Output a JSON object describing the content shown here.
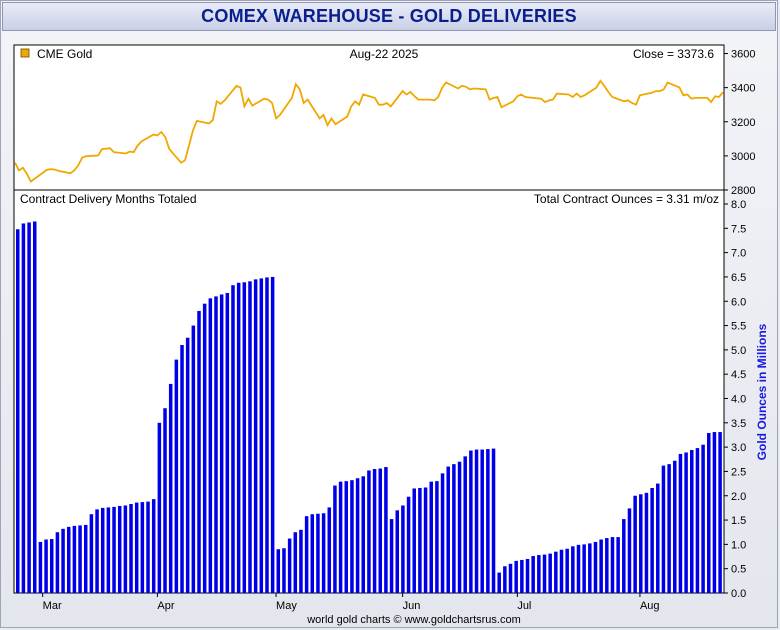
{
  "title": "COMEX WAREHOUSE - GOLD DELIVERIES",
  "footer": "world gold charts © www.goldchartsrus.com",
  "colors": {
    "gold_line": "#f0a800",
    "bars": "#0000e8",
    "title": "#0b1f8c",
    "ylabel": "#1a1ae0"
  },
  "chart_data": [
    {
      "type": "line",
      "legend": "CME Gold",
      "date_label": "Aug-22  2025",
      "close_label": "Close = 3373.6",
      "ylim": [
        2800,
        3650
      ],
      "yticks": [
        "2800",
        "3000",
        "3200",
        "3400",
        "3600"
      ],
      "grid": false,
      "x_range": [
        "2025-02-24",
        "2025-08-22"
      ],
      "points": [
        [
          "2025-02-24",
          2960
        ],
        [
          "2025-02-25",
          2915
        ],
        [
          "2025-02-26",
          2930
        ],
        [
          "2025-02-27",
          2895
        ],
        [
          "2025-02-28",
          2850
        ],
        [
          "2025-03-03",
          2900
        ],
        [
          "2025-03-04",
          2918
        ],
        [
          "2025-03-05",
          2922
        ],
        [
          "2025-03-06",
          2920
        ],
        [
          "2025-03-07",
          2912
        ],
        [
          "2025-03-10",
          2898
        ],
        [
          "2025-03-11",
          2915
        ],
        [
          "2025-03-12",
          2945
        ],
        [
          "2025-03-13",
          2990
        ],
        [
          "2025-03-14",
          2998
        ],
        [
          "2025-03-17",
          3002
        ],
        [
          "2025-03-18",
          3040
        ],
        [
          "2025-03-19",
          3042
        ],
        [
          "2025-03-20",
          3045
        ],
        [
          "2025-03-21",
          3022
        ],
        [
          "2025-03-24",
          3014
        ],
        [
          "2025-03-25",
          3025
        ],
        [
          "2025-03-26",
          3022
        ],
        [
          "2025-03-27",
          3060
        ],
        [
          "2025-03-28",
          3085
        ],
        [
          "2025-03-31",
          3125
        ],
        [
          "2025-04-01",
          3120
        ],
        [
          "2025-04-02",
          3140
        ],
        [
          "2025-04-03",
          3110
        ],
        [
          "2025-04-04",
          3040
        ],
        [
          "2025-04-07",
          2960
        ],
        [
          "2025-04-08",
          2975
        ],
        [
          "2025-04-09",
          3060
        ],
        [
          "2025-04-10",
          3150
        ],
        [
          "2025-04-11",
          3205
        ],
        [
          "2025-04-14",
          3190
        ],
        [
          "2025-04-15",
          3210
        ],
        [
          "2025-04-16",
          3320
        ],
        [
          "2025-04-17",
          3305
        ],
        [
          "2025-04-18",
          3325
        ],
        [
          "2025-04-21",
          3410
        ],
        [
          "2025-04-22",
          3400
        ],
        [
          "2025-04-23",
          3290
        ],
        [
          "2025-04-24",
          3335
        ],
        [
          "2025-04-25",
          3295
        ],
        [
          "2025-04-28",
          3335
        ],
        [
          "2025-04-29",
          3330
        ],
        [
          "2025-04-30",
          3310
        ],
        [
          "2025-05-01",
          3220
        ],
        [
          "2025-05-02",
          3240
        ],
        [
          "2025-05-05",
          3340
        ],
        [
          "2025-05-06",
          3420
        ],
        [
          "2025-05-07",
          3390
        ],
        [
          "2025-05-08",
          3310
        ],
        [
          "2025-05-09",
          3330
        ],
        [
          "2025-05-12",
          3220
        ],
        [
          "2025-05-13",
          3240
        ],
        [
          "2025-05-14",
          3180
        ],
        [
          "2025-05-15",
          3220
        ],
        [
          "2025-05-16",
          3185
        ],
        [
          "2025-05-19",
          3230
        ],
        [
          "2025-05-20",
          3290
        ],
        [
          "2025-05-21",
          3320
        ],
        [
          "2025-05-22",
          3300
        ],
        [
          "2025-05-23",
          3360
        ],
        [
          "2025-05-26",
          3340
        ],
        [
          "2025-05-27",
          3300
        ],
        [
          "2025-05-28",
          3300
        ],
        [
          "2025-05-29",
          3310
        ],
        [
          "2025-05-30",
          3290
        ],
        [
          "2025-06-02",
          3380
        ],
        [
          "2025-06-03",
          3360
        ],
        [
          "2025-06-04",
          3375
        ],
        [
          "2025-06-05",
          3350
        ],
        [
          "2025-06-06",
          3330
        ],
        [
          "2025-06-09",
          3330
        ],
        [
          "2025-06-10",
          3325
        ],
        [
          "2025-06-11",
          3345
        ],
        [
          "2025-06-12",
          3400
        ],
        [
          "2025-06-13",
          3430
        ],
        [
          "2025-06-16",
          3395
        ],
        [
          "2025-06-17",
          3410
        ],
        [
          "2025-06-18",
          3405
        ],
        [
          "2025-06-19",
          3390
        ],
        [
          "2025-06-20",
          3395
        ],
        [
          "2025-06-23",
          3390
        ],
        [
          "2025-06-24",
          3330
        ],
        [
          "2025-06-25",
          3340
        ],
        [
          "2025-06-26",
          3345
        ],
        [
          "2025-06-27",
          3285
        ],
        [
          "2025-06-30",
          3320
        ],
        [
          "2025-07-01",
          3350
        ],
        [
          "2025-07-02",
          3360
        ],
        [
          "2025-07-03",
          3345
        ],
        [
          "2025-07-07",
          3335
        ],
        [
          "2025-07-08",
          3315
        ],
        [
          "2025-07-09",
          3325
        ],
        [
          "2025-07-10",
          3330
        ],
        [
          "2025-07-11",
          3365
        ],
        [
          "2025-07-14",
          3360
        ],
        [
          "2025-07-15",
          3345
        ],
        [
          "2025-07-16",
          3365
        ],
        [
          "2025-07-17",
          3345
        ],
        [
          "2025-07-18",
          3355
        ],
        [
          "2025-07-21",
          3400
        ],
        [
          "2025-07-22",
          3440
        ],
        [
          "2025-07-23",
          3410
        ],
        [
          "2025-07-24",
          3375
        ],
        [
          "2025-07-25",
          3345
        ],
        [
          "2025-07-28",
          3320
        ],
        [
          "2025-07-29",
          3325
        ],
        [
          "2025-07-30",
          3310
        ],
        [
          "2025-07-31",
          3300
        ],
        [
          "2025-08-01",
          3355
        ],
        [
          "2025-08-04",
          3370
        ],
        [
          "2025-08-05",
          3380
        ],
        [
          "2025-08-06",
          3380
        ],
        [
          "2025-08-07",
          3390
        ],
        [
          "2025-08-08",
          3430
        ],
        [
          "2025-08-11",
          3400
        ],
        [
          "2025-08-12",
          3355
        ],
        [
          "2025-08-13",
          3360
        ],
        [
          "2025-08-14",
          3335
        ],
        [
          "2025-08-15",
          3340
        ],
        [
          "2025-08-18",
          3340
        ],
        [
          "2025-08-19",
          3315
        ],
        [
          "2025-08-20",
          3350
        ],
        [
          "2025-08-21",
          3345
        ],
        [
          "2025-08-22",
          3373.6
        ]
      ]
    },
    {
      "type": "bar",
      "title": "Contract Delivery Months Totaled",
      "total_label": "Total Contract Ounces = 3.31 m/oz",
      "ylabel": "Gold Ounces in Millions",
      "ylim": [
        0,
        8.0
      ],
      "yticks": [
        "0.0",
        "0.5",
        "1.0",
        "1.5",
        "2.0",
        "2.5",
        "3.0",
        "3.5",
        "4.0",
        "4.5",
        "5.0",
        "5.5",
        "6.0",
        "6.5",
        "7.0",
        "7.5",
        "8.0"
      ],
      "xticks": [
        {
          "label": "Mar",
          "date": "2025-03-03"
        },
        {
          "label": "Apr",
          "date": "2025-04-01"
        },
        {
          "label": "May",
          "date": "2025-05-01"
        },
        {
          "label": "Jun",
          "date": "2025-06-02"
        },
        {
          "label": "Jul",
          "date": "2025-07-01"
        },
        {
          "label": "Aug",
          "date": "2025-08-01"
        }
      ],
      "grid": false,
      "values": [
        7.48,
        7.6,
        7.62,
        7.64,
        1.05,
        1.1,
        1.11,
        1.25,
        1.32,
        1.36,
        1.38,
        1.39,
        1.4,
        1.62,
        1.72,
        1.75,
        1.76,
        1.77,
        1.79,
        1.8,
        1.83,
        1.86,
        1.87,
        1.88,
        1.93,
        3.5,
        3.8,
        4.3,
        4.8,
        5.1,
        5.25,
        5.5,
        5.8,
        5.95,
        6.06,
        6.1,
        6.14,
        6.17,
        6.33,
        6.38,
        6.39,
        6.41,
        6.45,
        6.47,
        6.49,
        6.5,
        0.9,
        0.92,
        1.12,
        1.25,
        1.3,
        1.58,
        1.62,
        1.63,
        1.64,
        1.76,
        2.21,
        2.29,
        2.3,
        2.32,
        2.36,
        2.4,
        2.52,
        2.55,
        2.56,
        2.59,
        1.52,
        1.7,
        1.8,
        1.98,
        2.15,
        2.16,
        2.17,
        2.29,
        2.3,
        2.46,
        2.6,
        2.65,
        2.7,
        2.81,
        2.93,
        2.95,
        2.95,
        2.96,
        2.97,
        0.42,
        0.55,
        0.6,
        0.66,
        0.68,
        0.7,
        0.76,
        0.78,
        0.79,
        0.81,
        0.85,
        0.89,
        0.91,
        0.96,
        0.99,
        1.0,
        1.02,
        1.05,
        1.1,
        1.13,
        1.15,
        1.15,
        1.52,
        1.74,
        2.0,
        2.03,
        2.06,
        2.16,
        2.25,
        2.62,
        2.65,
        2.72,
        2.86,
        2.89,
        2.94,
        2.98,
        3.05,
        3.29,
        3.31,
        3.31
      ]
    }
  ]
}
